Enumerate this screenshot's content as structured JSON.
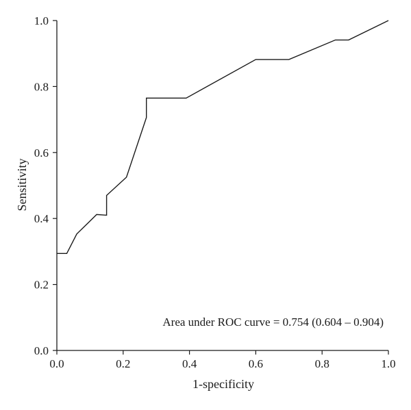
{
  "chart_data": {
    "type": "line",
    "title": "",
    "xlabel": "1-specificity",
    "ylabel": "Sensitivity",
    "xlim": [
      0,
      1
    ],
    "ylim": [
      0,
      1
    ],
    "x_ticks": [
      0.0,
      0.2,
      0.4,
      0.6,
      0.8,
      1.0
    ],
    "y_ticks": [
      0.0,
      0.2,
      0.4,
      0.6,
      0.8,
      1.0
    ],
    "x_tick_labels": [
      "0.0",
      "0.2",
      "0.4",
      "0.6",
      "0.8",
      "1.0"
    ],
    "y_tick_labels": [
      "0.0",
      "0.2",
      "0.4",
      "0.6",
      "0.8",
      "1.0"
    ],
    "grid": false,
    "legend": "none",
    "series": [
      {
        "line_color": "#1a1a1a",
        "x": [
          0.0,
          0.03,
          0.06,
          0.12,
          0.15,
          0.15,
          0.21,
          0.27,
          0.27,
          0.39,
          0.6,
          0.7,
          0.84,
          0.88,
          1.0
        ],
        "y": [
          0.294,
          0.294,
          0.353,
          0.412,
          0.41,
          0.47,
          0.525,
          0.706,
          0.765,
          0.765,
          0.882,
          0.882,
          0.941,
          0.941,
          1.0
        ]
      }
    ],
    "annotations": [
      {
        "text": "Area under ROC curve = 0.754 (0.604 – 0.904)"
      }
    ]
  }
}
